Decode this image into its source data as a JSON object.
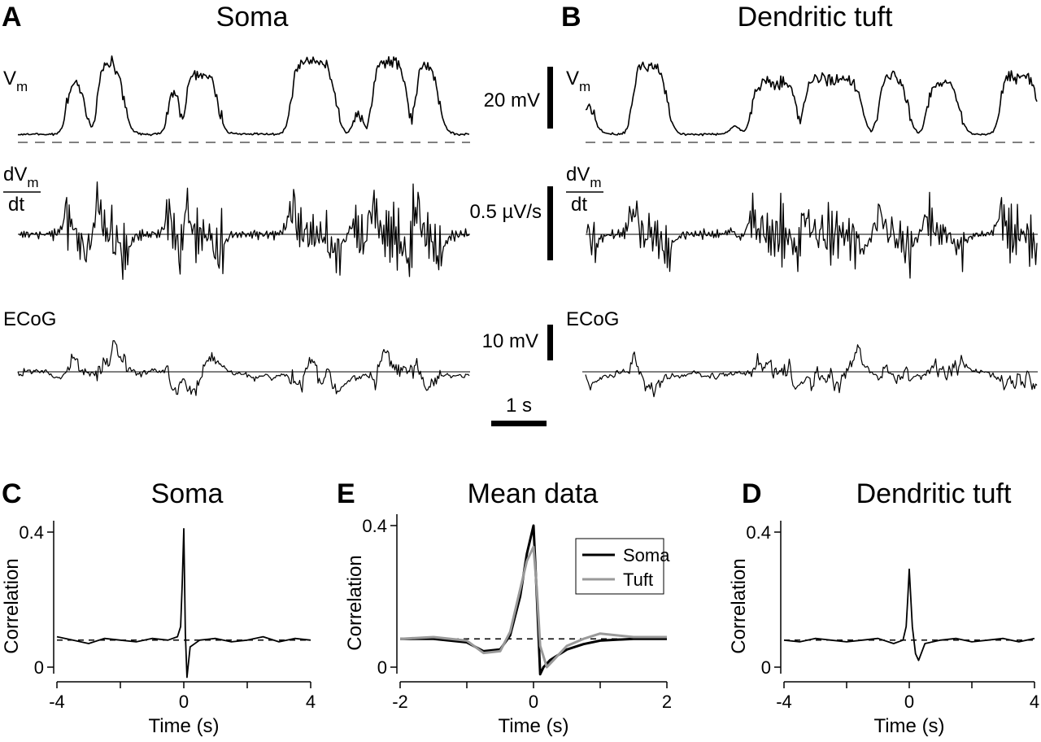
{
  "panels": {
    "A": {
      "letter": "A",
      "title": "Soma"
    },
    "B": {
      "letter": "B",
      "title": "Dendritic tuft"
    },
    "C": {
      "letter": "C",
      "title": "Soma"
    },
    "D": {
      "letter": "D",
      "title": "Dendritic tuft"
    },
    "E": {
      "letter": "E",
      "title": "Mean data"
    }
  },
  "traces": {
    "vm": {
      "label_main": "V",
      "label_sub": "m"
    },
    "dvdt": {
      "label_num_main": "dV",
      "label_num_sub": "m",
      "label_den": "dt"
    },
    "ecog": {
      "label": "ECoG"
    }
  },
  "scalebars": {
    "vm": "20 mV",
    "dvdt": "0.5 µV/s",
    "ecog": "10 mV",
    "time": "1 s"
  },
  "chart_data": [
    {
      "id": "C",
      "type": "line",
      "title": "Soma",
      "xlabel": "Time (s)",
      "ylabel": "Correlation",
      "xlim": [
        -4,
        4
      ],
      "ylim": [
        0,
        0.4
      ],
      "xticks": [
        -4,
        0,
        4
      ],
      "xticks_minor": [
        -2,
        2
      ],
      "yticks": [
        0,
        0.4
      ],
      "baseline": 0.08,
      "series": [
        {
          "color": "#000000",
          "x": [
            -4.0,
            -3.5,
            -3.0,
            -2.5,
            -2.0,
            -1.5,
            -1.0,
            -0.5,
            -0.2,
            -0.1,
            -0.05,
            0.0,
            0.05,
            0.1,
            0.2,
            0.5,
            1.0,
            1.5,
            2.0,
            2.5,
            3.0,
            3.5,
            4.0
          ],
          "y": [
            0.09,
            0.08,
            0.07,
            0.085,
            0.08,
            0.075,
            0.085,
            0.08,
            0.09,
            0.12,
            0.25,
            0.41,
            0.1,
            -0.03,
            0.06,
            0.08,
            0.085,
            0.075,
            0.08,
            0.09,
            0.075,
            0.085,
            0.08
          ]
        }
      ]
    },
    {
      "id": "E",
      "type": "line",
      "title": "Mean data",
      "xlabel": "Time (s)",
      "ylabel": "Correlation",
      "xlim": [
        -2,
        2
      ],
      "ylim": [
        0,
        0.4
      ],
      "xticks": [
        -2,
        0,
        2
      ],
      "xticks_minor": [
        -1,
        1
      ],
      "yticks": [
        0,
        0.4
      ],
      "baseline": 0.08,
      "legend": "top-right",
      "series": [
        {
          "name": "Soma",
          "color": "#000000",
          "x": [
            -2.0,
            -1.5,
            -1.0,
            -0.75,
            -0.5,
            -0.35,
            -0.2,
            -0.1,
            0.0,
            0.05,
            0.1,
            0.15,
            0.25,
            0.5,
            0.75,
            1.0,
            1.5,
            2.0
          ],
          "y": [
            0.08,
            0.08,
            0.07,
            0.045,
            0.05,
            0.09,
            0.2,
            0.32,
            0.4,
            0.2,
            -0.02,
            0.0,
            0.02,
            0.05,
            0.065,
            0.075,
            0.08,
            0.08
          ]
        },
        {
          "name": "Tuft",
          "color": "#999999",
          "x": [
            -2.0,
            -1.5,
            -1.0,
            -0.75,
            -0.5,
            -0.35,
            -0.2,
            -0.1,
            0.0,
            0.05,
            0.1,
            0.2,
            0.3,
            0.5,
            0.75,
            1.0,
            1.5,
            2.0
          ],
          "y": [
            0.08,
            0.085,
            0.075,
            0.04,
            0.045,
            0.1,
            0.22,
            0.3,
            0.34,
            0.22,
            0.06,
            0.0,
            0.02,
            0.06,
            0.08,
            0.095,
            0.085,
            0.085
          ]
        }
      ]
    },
    {
      "id": "D",
      "type": "line",
      "title": "Dendritic tuft",
      "xlabel": "Time (s)",
      "ylabel": "Correlation",
      "xlim": [
        -4,
        4
      ],
      "ylim": [
        0,
        0.4
      ],
      "xticks": [
        -4,
        0,
        4
      ],
      "xticks_minor": [
        -2,
        2
      ],
      "yticks": [
        0,
        0.4
      ],
      "baseline": 0.08,
      "series": [
        {
          "color": "#000000",
          "x": [
            -4.0,
            -3.5,
            -3.0,
            -2.5,
            -2.0,
            -1.5,
            -1.0,
            -0.5,
            -0.2,
            -0.1,
            -0.05,
            0.0,
            0.1,
            0.2,
            0.3,
            0.5,
            1.0,
            1.5,
            2.0,
            2.5,
            3.0,
            3.5,
            4.0
          ],
          "y": [
            0.08,
            0.075,
            0.085,
            0.08,
            0.075,
            0.08,
            0.085,
            0.07,
            0.08,
            0.12,
            0.2,
            0.29,
            0.12,
            0.04,
            0.02,
            0.07,
            0.08,
            0.085,
            0.075,
            0.08,
            0.085,
            0.075,
            0.085
          ]
        }
      ]
    }
  ]
}
